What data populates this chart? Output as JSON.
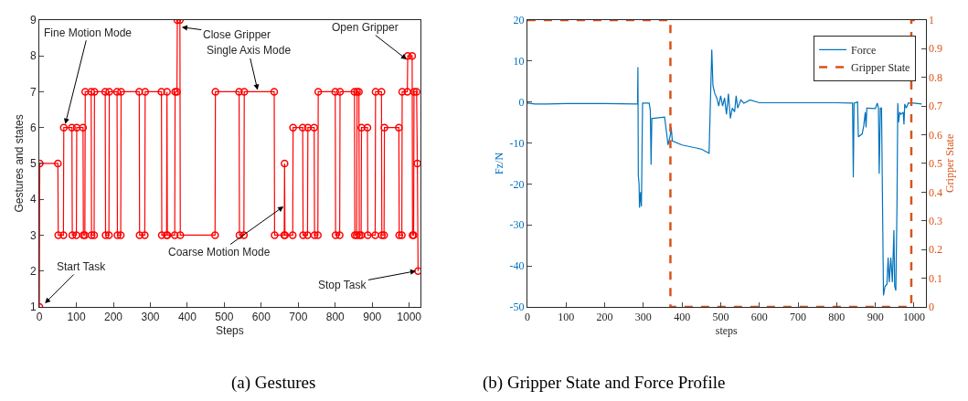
{
  "chart_data": [
    {
      "type": "line",
      "title": "(a) Gestures",
      "xlabel": "Steps",
      "ylabel": "Gestures and states",
      "marker": "circle",
      "line_style": "solid",
      "legend": false,
      "grid": false,
      "xlim": [
        0,
        1030
      ],
      "xticks": [
        0,
        100,
        200,
        300,
        400,
        500,
        600,
        700,
        800,
        900,
        1000
      ],
      "ylim": [
        1,
        9
      ],
      "yticks": [
        1,
        2,
        3,
        4,
        5,
        6,
        7,
        8,
        9
      ],
      "series": [
        {
          "color": "#ff0000",
          "x": [
            0,
            1,
            50,
            51,
            65,
            66,
            88,
            89,
            100,
            101,
            118,
            119,
            123,
            124,
            140,
            141,
            148,
            149,
            178,
            179,
            188,
            189,
            210,
            211,
            220,
            221,
            270,
            271,
            285,
            286,
            330,
            331,
            344,
            345,
            346,
            366,
            367,
            372,
            373,
            380,
            381,
            475,
            476,
            540,
            541,
            553,
            554,
            635,
            636,
            662,
            663,
            664,
            685,
            686,
            712,
            713,
            725,
            726,
            743,
            744,
            753,
            754,
            800,
            801,
            812,
            813,
            852,
            853,
            858,
            859,
            864,
            865,
            870,
            871,
            887,
            888,
            908,
            909,
            925,
            926,
            932,
            933,
            972,
            973,
            980,
            981,
            995,
            996,
            1008,
            1009,
            1012,
            1013,
            1020,
            1022,
            1024
          ],
          "values": [
            1,
            5,
            5,
            3,
            3,
            6,
            6,
            3,
            3,
            6,
            6,
            3,
            3,
            7,
            7,
            3,
            3,
            7,
            7,
            3,
            3,
            7,
            7,
            3,
            3,
            7,
            7,
            3,
            3,
            7,
            7,
            3,
            3,
            7,
            3,
            3,
            7,
            7,
            9,
            9,
            3,
            3,
            7,
            7,
            3,
            3,
            7,
            7,
            3,
            3,
            5,
            3,
            3,
            6,
            6,
            3,
            3,
            6,
            6,
            3,
            3,
            7,
            7,
            3,
            3,
            7,
            7,
            3,
            3,
            7,
            7,
            3,
            3,
            6,
            6,
            3,
            3,
            7,
            7,
            3,
            3,
            6,
            6,
            3,
            3,
            7,
            7,
            8,
            8,
            3,
            3,
            7,
            7,
            5,
            2
          ]
        }
      ],
      "annotations": [
        {
          "text": "Start Task",
          "x": 15,
          "y": 1.1
        },
        {
          "text": "Fine Motion Mode",
          "x": 70,
          "y": 6.1
        },
        {
          "text": "Close Gripper",
          "x": 385,
          "y": 8.8
        },
        {
          "text": "Single Axis Mode",
          "x": 590,
          "y": 7.05
        },
        {
          "text": "Coarse Motion Mode",
          "x": 660,
          "y": 3.8
        },
        {
          "text": "Open Gripper",
          "x": 993,
          "y": 7.9
        },
        {
          "text": "Stop Task",
          "x": 1018,
          "y": 2.0
        }
      ]
    },
    {
      "type": "line",
      "title": "(b) Gripper State and Force Profile",
      "xlabel": "steps",
      "ylabel": "Fz/N",
      "y2label": "Gripper State",
      "legend": "top right",
      "grid": false,
      "xlim": [
        0,
        1030
      ],
      "xticks": [
        0,
        100,
        200,
        300,
        400,
        500,
        600,
        700,
        800,
        900,
        1000
      ],
      "ylim": [
        -50,
        20
      ],
      "yticks": [
        -50,
        -40,
        -30,
        -20,
        -10,
        0,
        10,
        20
      ],
      "y2lim": [
        0,
        1
      ],
      "y2ticks": [
        0,
        0.1,
        0.2,
        0.3,
        0.4,
        0.5,
        0.6,
        0.7,
        0.8,
        0.9,
        1
      ],
      "series": [
        {
          "name": "Force",
          "color": "#0072bd",
          "line_style": "solid",
          "x": [
            0,
            20,
            50,
            100,
            200,
            285,
            286,
            287,
            289,
            290,
            293,
            295,
            298,
            315,
            318,
            320,
            322,
            325,
            355,
            364,
            370,
            372,
            375,
            400,
            450,
            470,
            477,
            480,
            485,
            490,
            495,
            500,
            505,
            510,
            515,
            520,
            525,
            530,
            536,
            540,
            544,
            552,
            560,
            576,
            600,
            700,
            800,
            841,
            843,
            845,
            854,
            856,
            866,
            870,
            874,
            876,
            878,
            880,
            900,
            905,
            908,
            910,
            913,
            916,
            921,
            925,
            930,
            933,
            936,
            940,
            944,
            948,
            950,
            953,
            956,
            958,
            960,
            963,
            966,
            972,
            974,
            976,
            980,
            985,
            1000,
            1020
          ],
          "values": [
            -0.3,
            -0.5,
            -0.5,
            -0.4,
            -0.4,
            -0.5,
            8.5,
            -18,
            -20,
            -25.8,
            -22,
            -25.5,
            -0.3,
            -0.3,
            -2,
            -15.3,
            -4,
            -4,
            -3.7,
            -10.5,
            -8,
            -6.2,
            -9.5,
            -10.5,
            -11.5,
            -12.5,
            12.8,
            4,
            2,
            1,
            -1,
            1.5,
            -1,
            1,
            -3,
            2,
            -4,
            -1.5,
            -2.4,
            1.5,
            -1.5,
            0.5,
            -0.3,
            0.5,
            -0.2,
            -0.2,
            -0.2,
            -0.3,
            -18.4,
            -0.3,
            0,
            -8.5,
            -7.8,
            -5.8,
            -2.5,
            -6.2,
            -1.5,
            -1.5,
            -1.6,
            -0.3,
            -1.5,
            -17.5,
            -1.5,
            -1.5,
            -47.2,
            -45,
            -44.5,
            -38,
            -44,
            -38,
            -44,
            -31.3,
            -45,
            -46,
            -25,
            -0.3,
            -5,
            -2.5,
            -3,
            -2.5,
            -5.5,
            -0.5,
            -1.5,
            -0.3,
            -0.3,
            -0.5
          ]
        },
        {
          "name": "Gripper State",
          "color": "#d95319",
          "line_style": "dashed",
          "axis": "y2",
          "x": [
            0,
            370,
            370,
            993,
            993,
            1002
          ],
          "values": [
            1,
            1,
            0,
            0,
            1,
            1
          ]
        }
      ]
    }
  ]
}
